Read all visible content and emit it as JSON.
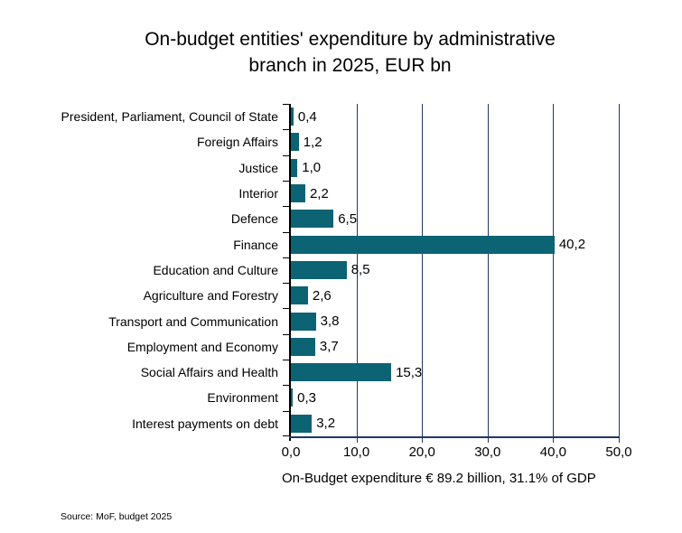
{
  "title": {
    "line1": "On-budget entities' expenditure by administrative",
    "line2": "branch in 2025, EUR bn"
  },
  "chart_data": {
    "type": "bar",
    "orientation": "horizontal",
    "title": "On-budget entities' expenditure by administrative branch in 2025, EUR bn",
    "categories": [
      "President, Parliament, Council of State",
      "Foreign Affairs",
      "Justice",
      "Interior",
      "Defence",
      "Finance",
      "Education and Culture",
      "Agriculture and Forestry",
      "Transport and Communication",
      "Employment and Economy",
      "Social Affairs and Health",
      "Environment",
      "Interest payments on debt"
    ],
    "values": [
      0.4,
      1.2,
      1.0,
      2.2,
      6.5,
      40.2,
      8.5,
      2.6,
      3.8,
      3.7,
      15.3,
      0.3,
      3.2
    ],
    "value_labels": [
      "0,4",
      "1,2",
      "1,0",
      "2,2",
      "6,5",
      "40,2",
      "8,5",
      "2,6",
      "3,8",
      "3,7",
      "15,3",
      "0,3",
      "3,2"
    ],
    "xlim": [
      0,
      50
    ],
    "x_tick_values": [
      0,
      10,
      20,
      30,
      40,
      50
    ],
    "x_tick_labels": [
      "0,0",
      "10,0",
      "20,0",
      "30,0",
      "40,0",
      "50,0"
    ],
    "grid": true,
    "legend": "none",
    "bar_color": "#0B6374",
    "grid_color": "#1F3864",
    "axis_color": "#000000"
  },
  "caption": "On-Budget expenditure € 89.2 billion, 31.1% of GDP",
  "source": "Source: MoF, budget 2025"
}
